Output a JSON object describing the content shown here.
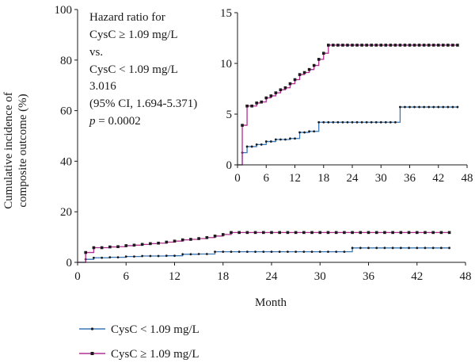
{
  "chart_data": [
    {
      "type": "line",
      "step": true,
      "xlabel": "Month",
      "ylabel_lines": [
        "Cumulative incidence of",
        "composite outcome (%)"
      ],
      "xlim": [
        0,
        48
      ],
      "ylim": [
        0,
        100
      ],
      "xticks": [
        "0",
        "6",
        "12",
        "18",
        "24",
        "30",
        "36",
        "42",
        "48"
      ],
      "yticks": [
        "0",
        "20",
        "40",
        "60",
        "80",
        "100"
      ],
      "annotation": {
        "lines": [
          "Hazard ratio for",
          "CysC ≥ 1.09 mg/L",
          "vs.",
          "CysC < 1.09 mg/L",
          "3.016",
          "(95% CI, 1.694-5.371)"
        ],
        "p_label": "p",
        "p_value": " = 0.0002"
      },
      "legend": {
        "placement": "bottom-left",
        "entries": [
          "CysC < 1.09 mg/L",
          "CysC ≥ 1.09 mg/L"
        ]
      },
      "series": [
        {
          "name": "CysC < 1.09 mg/L",
          "color": "#3a78b8",
          "x": [
            0,
            1,
            2,
            3,
            4,
            5,
            6,
            7,
            8,
            9,
            10,
            11,
            12,
            13,
            14,
            15,
            16,
            17,
            18,
            19,
            20,
            21,
            22,
            23,
            24,
            25,
            26,
            27,
            28,
            29,
            30,
            31,
            32,
            33,
            34,
            35,
            36,
            37,
            38,
            39,
            40,
            41,
            42,
            43,
            44,
            45,
            46
          ],
          "y": [
            0,
            1.2,
            1.8,
            1.8,
            2.0,
            2.0,
            2.3,
            2.3,
            2.5,
            2.5,
            2.5,
            2.6,
            2.6,
            3.2,
            3.2,
            3.3,
            3.3,
            4.2,
            4.2,
            4.2,
            4.2,
            4.2,
            4.2,
            4.2,
            4.2,
            4.2,
            4.2,
            4.2,
            4.2,
            4.2,
            4.2,
            4.2,
            4.2,
            4.2,
            5.7,
            5.7,
            5.7,
            5.7,
            5.7,
            5.7,
            5.7,
            5.7,
            5.7,
            5.7,
            5.7,
            5.7,
            5.7
          ]
        },
        {
          "name": "CysC ≥ 1.09 mg/L",
          "color": "#b03090",
          "x": [
            0,
            1,
            2,
            3,
            4,
            5,
            6,
            7,
            8,
            9,
            10,
            11,
            12,
            13,
            14,
            15,
            16,
            17,
            18,
            19,
            20,
            21,
            22,
            23,
            24,
            25,
            26,
            27,
            28,
            29,
            30,
            31,
            32,
            33,
            34,
            35,
            36,
            37,
            38,
            39,
            40,
            41,
            42,
            43,
            44,
            45,
            46
          ],
          "y": [
            0,
            3.9,
            5.8,
            5.8,
            6.1,
            6.2,
            6.6,
            6.8,
            7.1,
            7.4,
            7.6,
            8.0,
            8.4,
            8.9,
            9.1,
            9.4,
            9.8,
            10.4,
            11.0,
            11.8,
            11.8,
            11.8,
            11.8,
            11.8,
            11.8,
            11.8,
            11.8,
            11.8,
            11.8,
            11.8,
            11.8,
            11.8,
            11.8,
            11.8,
            11.8,
            11.8,
            11.8,
            11.8,
            11.8,
            11.8,
            11.8,
            11.8,
            11.8,
            11.8,
            11.8,
            11.8,
            11.8
          ]
        }
      ]
    },
    {
      "type": "line",
      "step": true,
      "placement": "inset-top-right",
      "xlim": [
        0,
        48
      ],
      "ylim": [
        0,
        15
      ],
      "xticks": [
        "0",
        "6",
        "12",
        "18",
        "24",
        "30",
        "36",
        "42",
        "48"
      ],
      "yticks": [
        "0",
        "5",
        "10",
        "15"
      ]
    }
  ]
}
